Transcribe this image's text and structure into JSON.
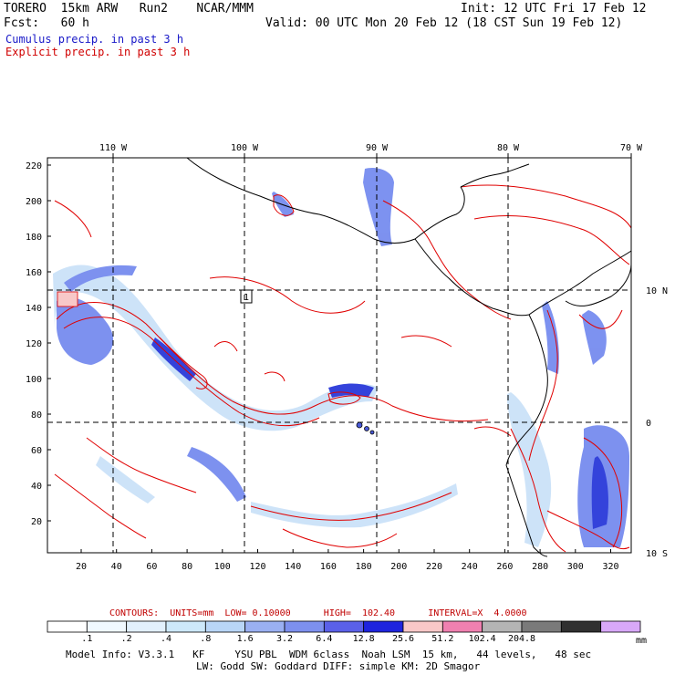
{
  "header": {
    "line1_left": "TORERO  15km ARW   Run2    NCAR/MMM",
    "line1_right": "Init: 12 UTC Fri 17 Feb 12",
    "line2_left": "Fcst:   60 h",
    "line2_right": "Valid: 00 UTC Mon 20 Feb 12 (18 CST Sun 19 Feb 12)",
    "cumulus_label": "Cumulus precip. in past 3 h",
    "explicit_label": "Explicit precip. in past 3 h"
  },
  "map": {
    "top_lon_ticks": [
      "110 W",
      "100 W",
      "90 W",
      "80 W",
      "70 W"
    ],
    "right_lat_ticks": [
      "10 N",
      "0",
      "10 S"
    ],
    "left_grid_ticks": [
      "220",
      "200",
      "180",
      "160",
      "140",
      "120",
      "100",
      "80",
      "60",
      "40",
      "20"
    ],
    "bottom_grid_ticks": [
      "20",
      "40",
      "60",
      "80",
      "100",
      "120",
      "140",
      "160",
      "180",
      "200",
      "220",
      "240",
      "260",
      "280",
      "300",
      "320"
    ],
    "box_label": "1",
    "colors": {
      "contour": "#e00000",
      "coast": "#000000",
      "cumulus_light": "#c8e0f8",
      "cumulus_mid": "#6f86ee",
      "cumulus_dark": "#1f2fd8"
    }
  },
  "contours_text": "CONTOURS:  UNITS=mm  LOW= 0.10000      HIGH=  102.40      INTERVAL=X  4.0000",
  "colorbar": {
    "labels": [
      ".1",
      ".2",
      ".4",
      ".8",
      "1.6",
      "3.2",
      "6.4",
      "12.8",
      "25.6",
      "51.2",
      "102.4",
      "204.8"
    ],
    "unit": "mm",
    "colors": [
      "#ffffff",
      "#f0f8ff",
      "#e2f0fd",
      "#cde8fa",
      "#b9d6f7",
      "#9ab0f2",
      "#7d90ee",
      "#5a60e8",
      "#1e24de",
      "#f8c8c8",
      "#f080b0",
      "#b4b4b4",
      "#7a7a7a",
      "#303030",
      "#d8a8f8"
    ]
  },
  "footer": {
    "line1": "Model Info: V3.3.1   KF     YSU PBL  WDM 6class  Noah LSM  15 km,   44 levels,   48 sec",
    "line2": "LW: Godd SW: Goddard DIFF: simple KM: 2D Smagor"
  }
}
